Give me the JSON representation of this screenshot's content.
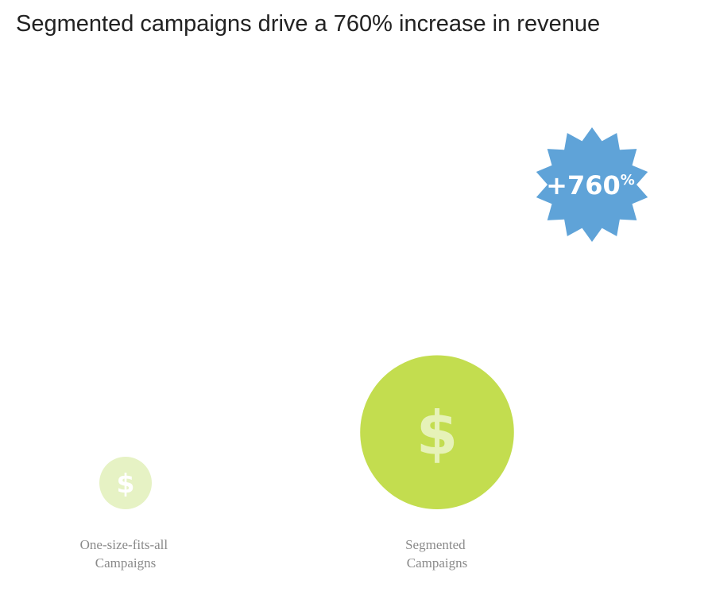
{
  "chart_data": {
    "type": "bubble",
    "title": "Segmented campaigns drive a 760% increase in revenue",
    "categories": [
      {
        "lines": [
          "One-size-fits-all",
          "Campaigns"
        ],
        "relative_value": 1,
        "color": "#e6f2c4"
      },
      {
        "lines": [
          "Segmented",
          "Campaigns"
        ],
        "relative_value": 8.6,
        "color": "#c3dd4f"
      }
    ],
    "badge": {
      "text": "+760",
      "suffix": "%",
      "color": "#5fa3d8"
    },
    "symbol": "$",
    "icons": [
      "dollar-sign-icon",
      "starburst-badge-icon"
    ]
  }
}
